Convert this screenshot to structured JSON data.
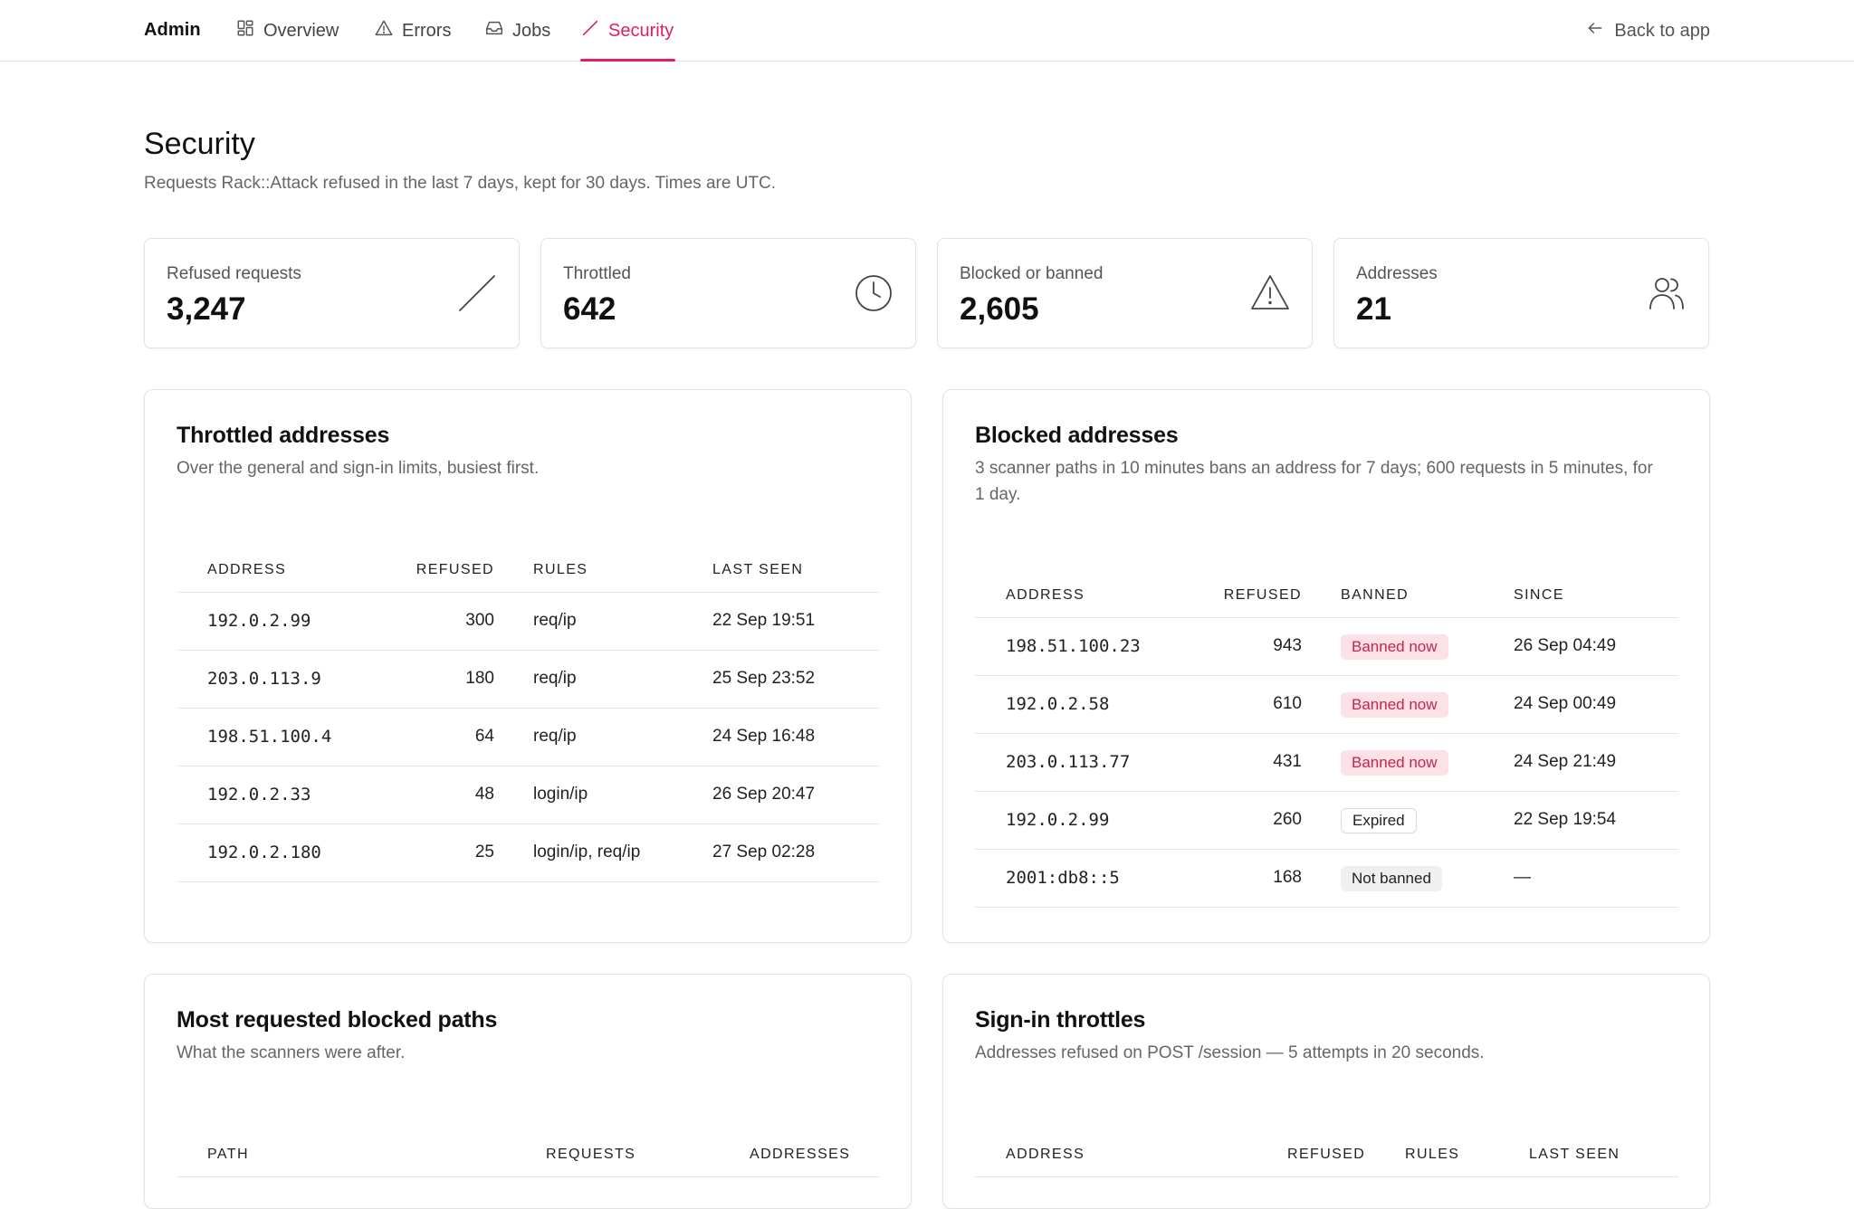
{
  "nav": {
    "brand": "Admin",
    "tabs": [
      {
        "label": "Overview",
        "icon": "grid-icon"
      },
      {
        "label": "Errors",
        "icon": "warning-icon"
      },
      {
        "label": "Jobs",
        "icon": "inbox-icon"
      },
      {
        "label": "Security",
        "icon": "slash-icon",
        "active": true
      }
    ],
    "back_label": "Back to app",
    "accent_color": "#e11d63"
  },
  "header": {
    "title": "Security",
    "subtitle": "Requests Rack::Attack refused in the last 7 days, kept for 30 days. Times are UTC."
  },
  "stats": [
    {
      "label": "Refused requests",
      "value": "3,247",
      "icon": "slash-icon"
    },
    {
      "label": "Throttled",
      "value": "642",
      "icon": "clock-icon"
    },
    {
      "label": "Blocked or banned",
      "value": "2,605",
      "icon": "warning-icon"
    },
    {
      "label": "Addresses",
      "value": "21",
      "icon": "users-icon"
    }
  ],
  "throttled": {
    "title": "Throttled addresses",
    "subtitle": "Over the general and sign-in limits, busiest first.",
    "columns": [
      "Address",
      "Refused",
      "Rules",
      "Last seen"
    ],
    "rows": [
      {
        "address": "192.0.2.99",
        "refused": "300",
        "rules": "req/ip",
        "last_seen": "22 Sep 19:51"
      },
      {
        "address": "203.0.113.9",
        "refused": "180",
        "rules": "req/ip",
        "last_seen": "25 Sep 23:52"
      },
      {
        "address": "198.51.100.4",
        "refused": "64",
        "rules": "req/ip",
        "last_seen": "24 Sep 16:48"
      },
      {
        "address": "192.0.2.33",
        "refused": "48",
        "rules": "login/ip",
        "last_seen": "26 Sep 20:47"
      },
      {
        "address": "192.0.2.180",
        "refused": "25",
        "rules": "login/ip, req/ip",
        "last_seen": "27 Sep 02:28"
      }
    ]
  },
  "blocked": {
    "title": "Blocked addresses",
    "subtitle": "3 scanner paths in 10 minutes bans an address for 7 days; 600 requests in 5 minutes, for 1 day.",
    "columns": [
      "Address",
      "Refused",
      "Banned",
      "Since"
    ],
    "rows": [
      {
        "address": "198.51.100.23",
        "refused": "943",
        "banned": "Banned now",
        "status": "banned",
        "since": "26 Sep 04:49"
      },
      {
        "address": "192.0.2.58",
        "refused": "610",
        "banned": "Banned now",
        "status": "banned",
        "since": "24 Sep 00:49"
      },
      {
        "address": "203.0.113.77",
        "refused": "431",
        "banned": "Banned now",
        "status": "banned",
        "since": "24 Sep 21:49"
      },
      {
        "address": "192.0.2.99",
        "refused": "260",
        "banned": "Expired",
        "status": "expired",
        "since": "22 Sep 19:54"
      },
      {
        "address": "2001:db8::5",
        "refused": "168",
        "banned": "Not banned",
        "status": "notbanned",
        "since": "—"
      }
    ]
  },
  "paths": {
    "title": "Most requested blocked paths",
    "subtitle": "What the scanners were after.",
    "columns": [
      "Path",
      "Requests",
      "Addresses"
    ]
  },
  "signin": {
    "title": "Sign-in throttles",
    "subtitle": "Addresses refused on POST /session — 5 attempts in 20 seconds.",
    "columns": [
      "Address",
      "Refused",
      "Rules",
      "Last seen"
    ]
  }
}
